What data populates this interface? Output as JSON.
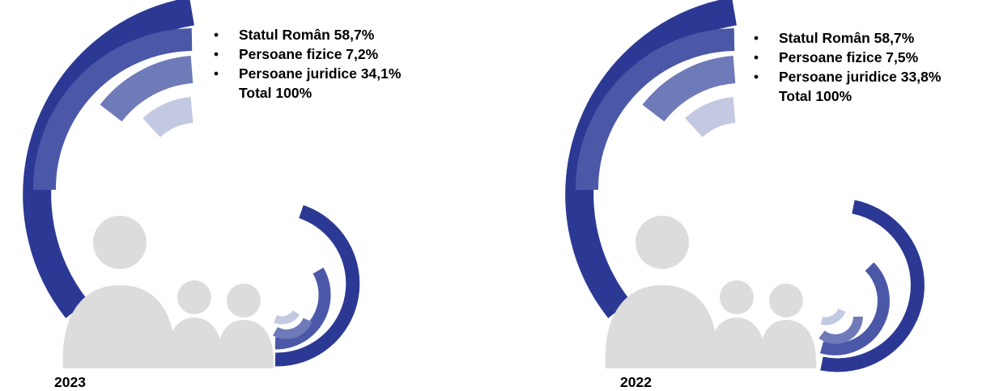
{
  "chart_data": [
    {
      "type": "pie",
      "title": "2023",
      "categories": [
        "Statul Român",
        "Persoane fizice",
        "Persoane juridice"
      ],
      "values": [
        58.7,
        7.2,
        34.1
      ],
      "legend": [
        {
          "label": "Statul Român 58,7%"
        },
        {
          "label": "Persoane fizice 7,2%"
        },
        {
          "label": "Persoane juridice 34,1%"
        }
      ],
      "total_label": "Total 100%",
      "legend_position": "top-right",
      "colors": [
        "#2c3994",
        "#4b58a8",
        "#6f7ab9",
        "#c3c8e3"
      ]
    },
    {
      "type": "pie",
      "title": "2022",
      "categories": [
        "Statul Român",
        "Persoane fizice",
        "Persoane juridice"
      ],
      "values": [
        58.7,
        7.5,
        33.8
      ],
      "legend": [
        {
          "label": "Statul Român 58,7%"
        },
        {
          "label": "Persoane fizice 7,5%"
        },
        {
          "label": "Persoane juridice 33,8%"
        }
      ],
      "total_label": "Total 100%",
      "legend_position": "top-right",
      "colors": [
        "#2c3994",
        "#4b58a8",
        "#6f7ab9",
        "#c3c8e3"
      ]
    }
  ],
  "people_color": "#dcdcdc",
  "bullet_glyph": "•"
}
